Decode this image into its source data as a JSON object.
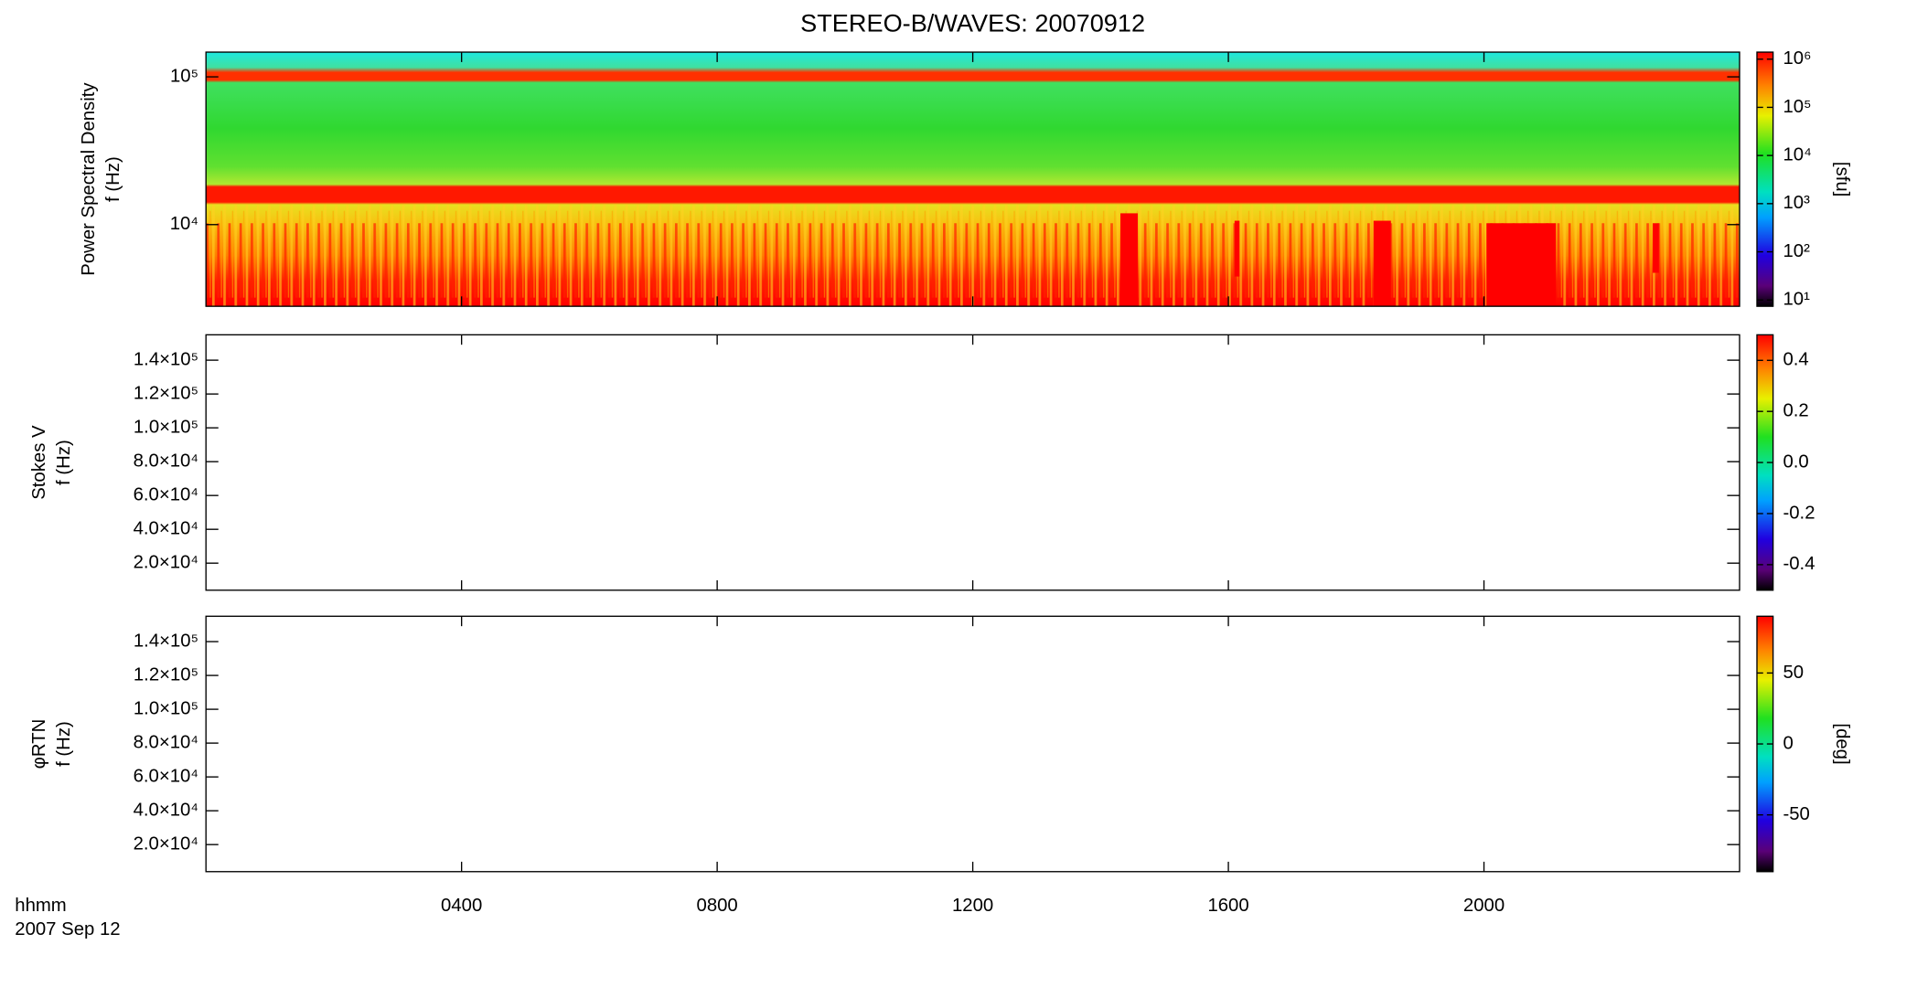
{
  "chart_data": [
    {
      "type": "heatmap",
      "title": "STEREO-B/WAVES: 20070912",
      "ylabel": [
        "Power Spectral Density",
        "f (Hz)"
      ],
      "log": true,
      "ylim": [
        2800,
        147000
      ],
      "yticks": [
        {
          "value": 10000,
          "label": "10⁴"
        },
        {
          "value": 100000,
          "label": "10⁵"
        }
      ],
      "colorbar": {
        "log": true,
        "clim": [
          7.4,
          1400000
        ],
        "label": "[sfu]",
        "ticks": [
          {
            "value": 10,
            "label": "10¹"
          },
          {
            "value": 100,
            "label": "10²"
          },
          {
            "value": 1000,
            "label": "10³"
          },
          {
            "value": 10000,
            "label": "10⁴"
          },
          {
            "value": 100000,
            "label": "10⁵"
          },
          {
            "value": 1000000,
            "label": "10⁶"
          }
        ]
      }
    },
    {
      "type": "heatmap",
      "ylabel": [
        "Stokes V",
        "f (Hz)"
      ],
      "log": false,
      "ylim": [
        4000,
        155000
      ],
      "yticks": [
        {
          "value": 20000,
          "label": "2.0×10⁴"
        },
        {
          "value": 40000,
          "label": "4.0×10⁴"
        },
        {
          "value": 60000,
          "label": "6.0×10⁴"
        },
        {
          "value": 80000,
          "label": "8.0×10⁴"
        },
        {
          "value": 100000,
          "label": "1.0×10⁵"
        },
        {
          "value": 120000,
          "label": "1.2×10⁵"
        },
        {
          "value": 140000,
          "label": "1.4×10⁵"
        }
      ],
      "colorbar": {
        "log": false,
        "clim": [
          -0.5,
          0.5
        ],
        "ticks": [
          {
            "value": -0.4,
            "label": "-0.4"
          },
          {
            "value": -0.2,
            "label": "-0.2"
          },
          {
            "value": 0,
            "label": "0.0"
          },
          {
            "value": 0.2,
            "label": "0.2"
          },
          {
            "value": 0.4,
            "label": "0.4"
          }
        ]
      }
    },
    {
      "type": "heatmap",
      "ylabel": [
        "φRTN",
        "f (Hz)"
      ],
      "log": false,
      "ylim": [
        4000,
        155000
      ],
      "yticks": [
        {
          "value": 20000,
          "label": "2.0×10⁴"
        },
        {
          "value": 40000,
          "label": "4.0×10⁴"
        },
        {
          "value": 60000,
          "label": "6.0×10⁴"
        },
        {
          "value": 80000,
          "label": "8.0×10⁴"
        },
        {
          "value": 100000,
          "label": "1.0×10⁵"
        },
        {
          "value": 120000,
          "label": "1.2×10⁵"
        },
        {
          "value": 140000,
          "label": "1.4×10⁵"
        }
      ],
      "colorbar": {
        "log": false,
        "clim": [
          -90,
          90
        ],
        "label": "[deg]",
        "ticks": [
          -50,
          0,
          50
        ]
      },
      "xlim": [
        0,
        24
      ],
      "xticks": [
        {
          "value": 4,
          "label": "0400"
        },
        {
          "value": 8,
          "label": "0800"
        },
        {
          "value": 12,
          "label": "1200"
        },
        {
          "value": 16,
          "label": "1600"
        },
        {
          "value": 20,
          "label": "2000"
        }
      ],
      "annotations": [
        "hhmm",
        "2007 Sep 12"
      ]
    }
  ]
}
